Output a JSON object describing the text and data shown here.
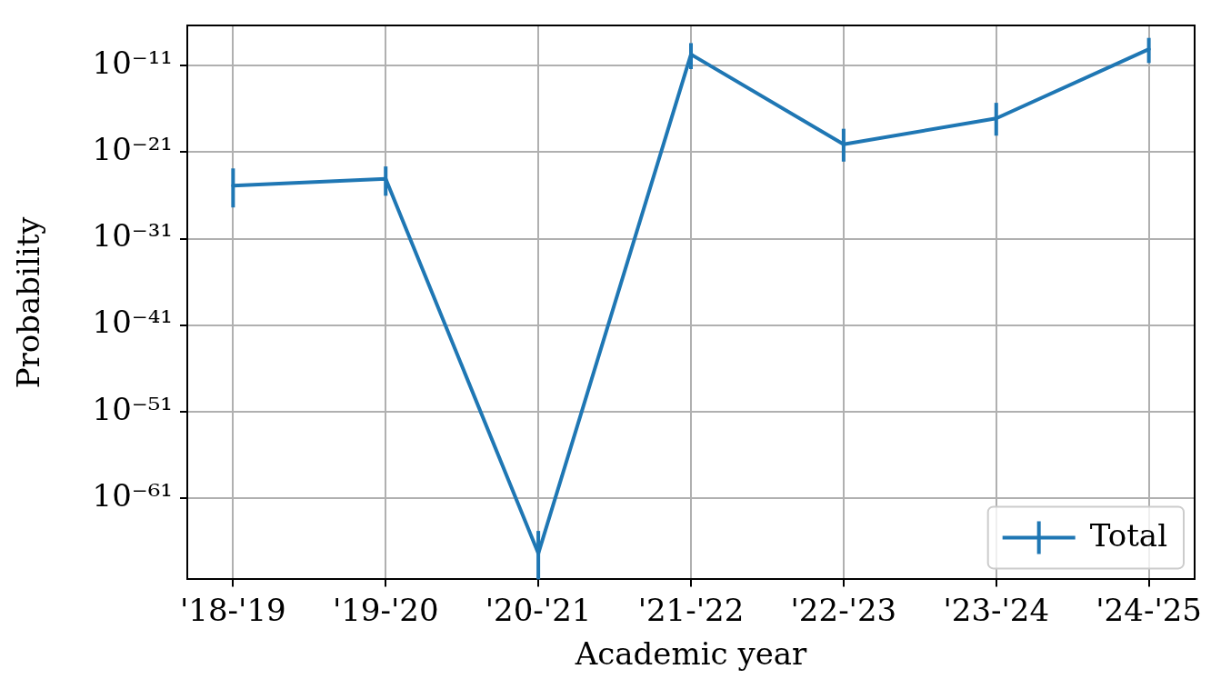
{
  "chart_data": {
    "type": "line",
    "xlabel": "Academic year",
    "ylabel": "Probability",
    "categories": [
      "'18-'19",
      "'19-'20",
      "'20-'21",
      "'21-'22",
      "'22-'23",
      "'23-'24",
      "'24-'25"
    ],
    "series": [
      {
        "name": "Total",
        "color": "#1f77b4",
        "values": [
          1.3e-25,
          8e-25,
          4e-68,
          2e-10,
          8e-21,
          8e-18,
          8e-10
        ],
        "errors": [
          [
            4e-28,
            1.3e-23
          ],
          [
            9e-27,
            2.2e-23
          ],
          [
            4e-71,
            1.6e-65
          ],
          [
            4e-12,
            4e-09
          ],
          [
            8e-23,
            5e-19
          ],
          [
            8e-20,
            5e-16
          ],
          [
            2e-11,
            1.6e-08
          ]
        ]
      }
    ],
    "log": true,
    "ylim": [
      4e-71,
      4e-07
    ],
    "yticks": [
      {
        "value": 1e-61,
        "label": "10⁻⁶¹"
      },
      {
        "value": 1e-51,
        "label": "10⁻⁵¹"
      },
      {
        "value": 1e-41,
        "label": "10⁻⁴¹"
      },
      {
        "value": 1e-31,
        "label": "10⁻³¹"
      },
      {
        "value": 1e-21,
        "label": "10⁻²¹"
      },
      {
        "value": 1e-11,
        "label": "10⁻¹¹"
      }
    ],
    "grid": true,
    "legend": "bottom right",
    "marker": "none",
    "line_style": "solid"
  }
}
